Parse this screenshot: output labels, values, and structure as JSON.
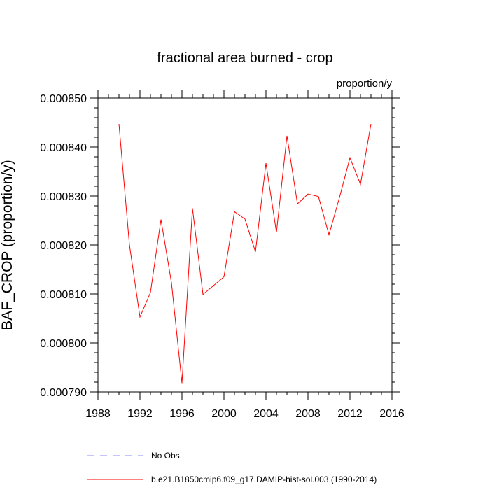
{
  "chart_data": {
    "type": "line",
    "title": "fractional area burned - crop",
    "units": "proportion/y",
    "xlabel": "",
    "ylabel": "BAF_CROP  (proportion/y)",
    "xlim": [
      1988,
      2016
    ],
    "ylim": [
      0.00079,
      0.00085
    ],
    "x_ticks": [
      1988,
      1992,
      1996,
      2000,
      2004,
      2008,
      2012,
      2016
    ],
    "x_tick_labels": [
      "1988",
      "1992",
      "1996",
      "2000",
      "2004",
      "2008",
      "2012",
      "2016"
    ],
    "y_ticks": [
      0.00079,
      0.0008,
      0.00081,
      0.00082,
      0.00083,
      0.00084,
      0.00085
    ],
    "y_tick_labels": [
      "0.000790",
      "0.000800",
      "0.000810",
      "0.000820",
      "0.000830",
      "0.000840",
      "0.000850"
    ],
    "grid": false,
    "legend_placement": "bottom",
    "series": [
      {
        "name": "b.e21.B1850cmip6.f09_g17.DAMIP-hist-sol.003 (1990-2014)",
        "color": "#ff0000",
        "style": "solid",
        "x": [
          1990,
          1991,
          1992,
          1993,
          1994,
          1995,
          1996,
          1997,
          1998,
          1999,
          2000,
          2001,
          2002,
          2003,
          2004,
          2005,
          2006,
          2007,
          2008,
          2009,
          2010,
          2011,
          2012,
          2013,
          2014
        ],
        "y": [
          0.0008447,
          0.00082,
          0.0008053,
          0.0008103,
          0.0008252,
          0.0008123,
          0.0007918,
          0.0008275,
          0.0008099,
          0.0008117,
          0.0008135,
          0.0008268,
          0.0008253,
          0.0008186,
          0.0008367,
          0.0008226,
          0.0008423,
          0.0008284,
          0.0008304,
          0.0008299,
          0.0008221,
          0.0008297,
          0.0008378,
          0.0008324,
          0.0008447
        ]
      }
    ],
    "legend": [
      {
        "label": "No Obs",
        "color": "#8888ff",
        "style": "dashed"
      },
      {
        "label": "b.e21.B1850cmip6.f09_g17.DAMIP-hist-sol.003 (1990-2014)",
        "color": "#ff0000",
        "style": "solid"
      }
    ]
  }
}
